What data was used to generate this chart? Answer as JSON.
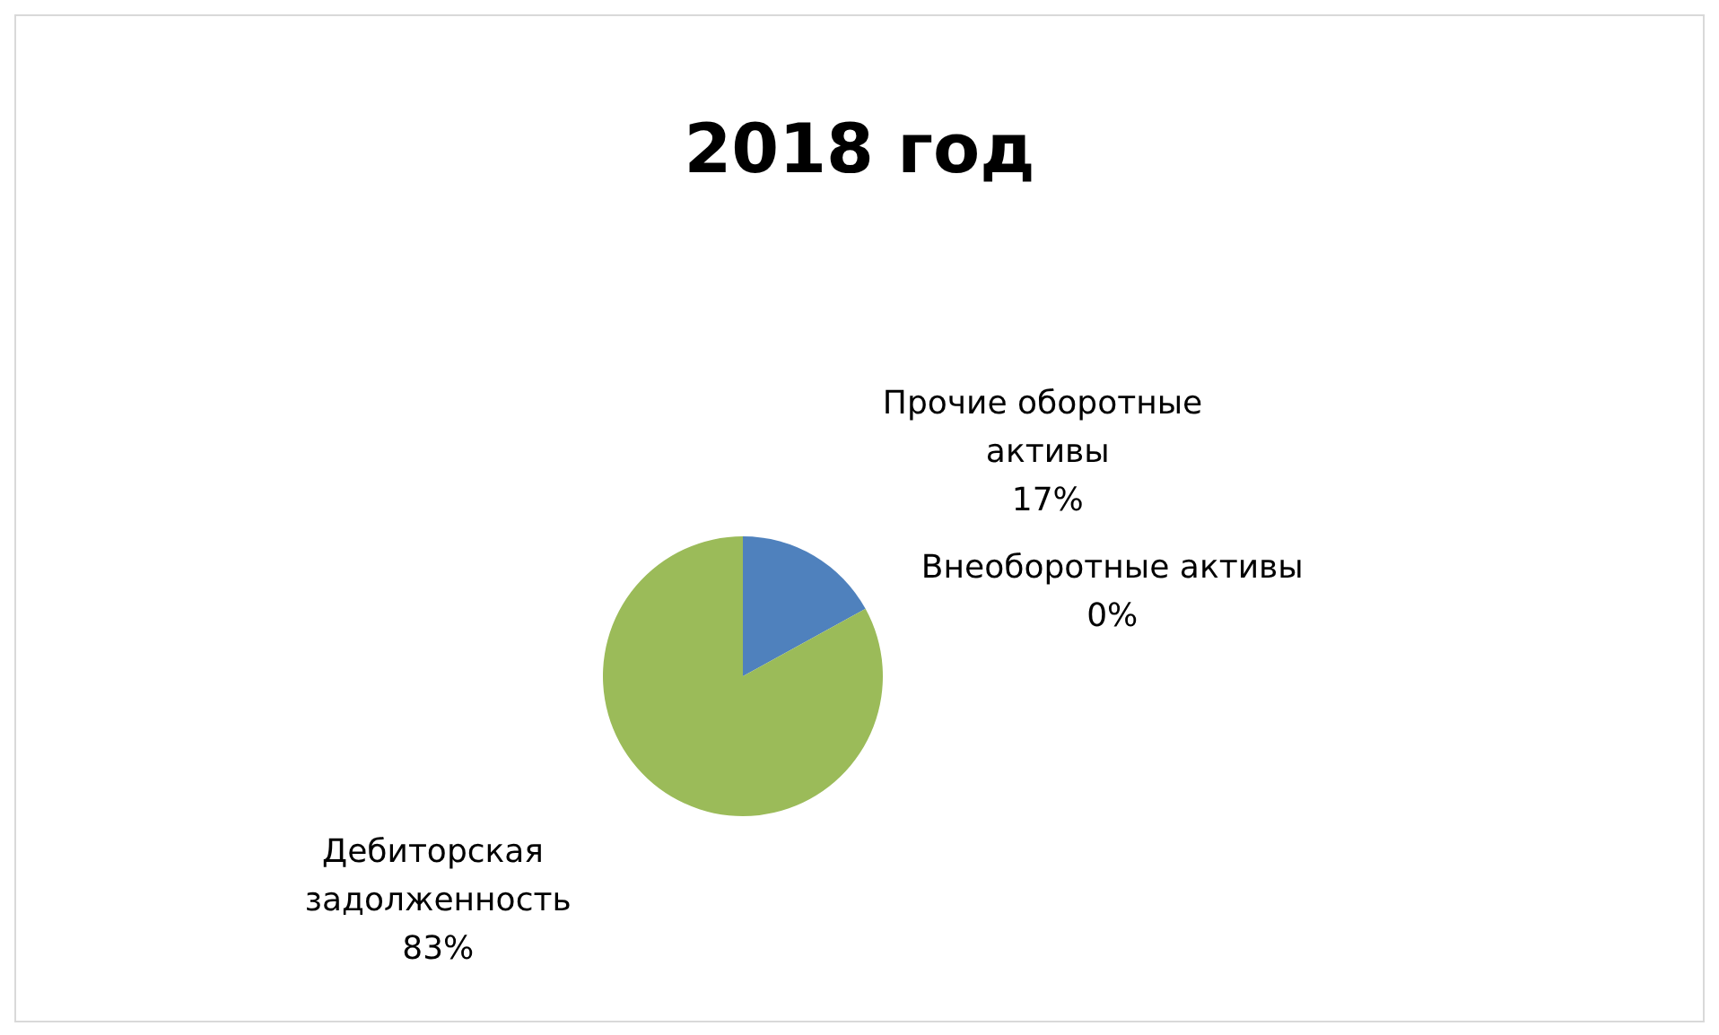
{
  "chart_data": {
    "type": "pie",
    "title": "2018 год",
    "categories": [
      "Прочие оборотные активы",
      "Внеоборотные активы",
      "Дебиторская задолженность"
    ],
    "values": [
      17,
      0,
      83
    ],
    "value_labels": [
      "17%",
      "0%",
      "83%"
    ],
    "colors": [
      "#4f81bd",
      "#c0504d",
      "#9bbb59"
    ],
    "legend": false
  }
}
